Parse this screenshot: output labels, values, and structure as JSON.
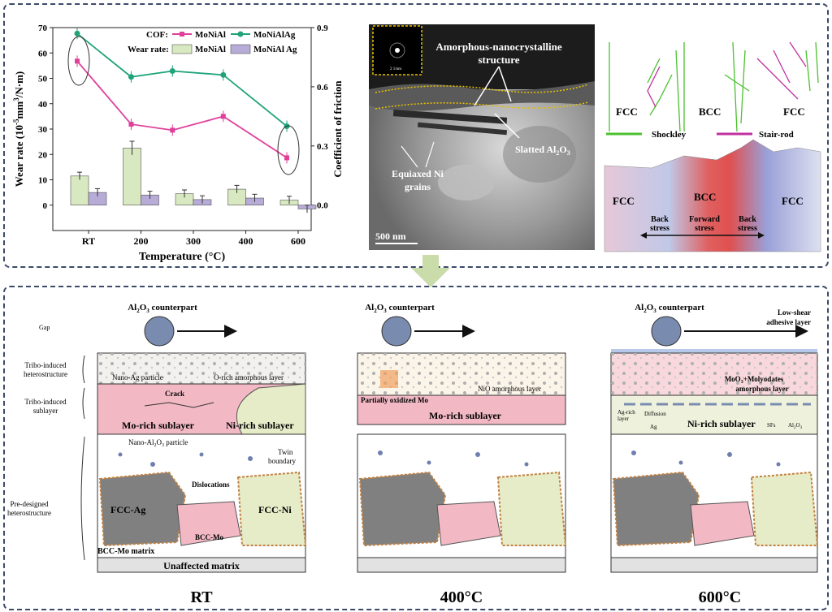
{
  "chart": {
    "ylabel_left": "Wear rate (10",
    "ylabel_left_sup": "-5",
    "ylabel_left_rest": "mm",
    "ylabel_left_sup2": "3",
    "ylabel_left_end": "/N·m)",
    "ylabel_right": "Coefficient of friction",
    "xlabel": "Temperature (°C)",
    "legend_cof": "COF:",
    "legend_wear": "Wear rate:",
    "legend_items": [
      "MoNiAl",
      "MoNiAlAg",
      "MoNiAl",
      "MoNiAl Ag"
    ],
    "left_ticks": [
      "0",
      "10",
      "20",
      "30",
      "40",
      "50",
      "60",
      "70"
    ],
    "right_ticks": [
      "0.0",
      "0.3",
      "0.6",
      "0.9"
    ],
    "x_ticks": [
      "RT",
      "200",
      "300",
      "400",
      "600"
    ]
  },
  "chart_data": {
    "type": "bar+line",
    "categories": [
      "RT",
      "200",
      "300",
      "400",
      "600"
    ],
    "ylim_left": [
      0,
      70
    ],
    "ylim_right": [
      0,
      0.9
    ],
    "series": [
      {
        "name": "MoNiAl",
        "kind": "bar",
        "values": [
          11.5,
          22.5,
          4.5,
          6.3,
          2.0
        ]
      },
      {
        "name": "MoNiAl Ag",
        "kind": "bar",
        "values": [
          5.0,
          4.0,
          2.2,
          2.8,
          -1.5
        ]
      },
      {
        "name": "MoNiAl",
        "kind": "line",
        "x": [
          0,
          0.85,
          1.5,
          2.3,
          3.3
        ],
        "values": [
          0.73,
          0.41,
          0.38,
          0.45,
          0.24
        ]
      },
      {
        "name": "MoNiAlAg",
        "kind": "line",
        "x": [
          0,
          0.85,
          1.5,
          2.3,
          3.3
        ],
        "values": [
          0.87,
          0.65,
          0.68,
          0.66,
          0.4
        ]
      }
    ],
    "colors": {
      "MoNiAl_line": "#e0409a",
      "MoNiAlAg_line": "#1fa37a",
      "MoNiAl_bar": "#d8e8c0",
      "MoNiAlAg_bar": "#b7acd8"
    }
  },
  "micrograph": {
    "title1": "Amorphous-nanocrystalline",
    "title2": "structure",
    "slatted": "Slatted Al",
    "slatted_sub": "2",
    "slatted_o": "O",
    "slatted_sub2": "3",
    "equiaxed1": "Equiaxed Ni",
    "equiaxed2": "grains",
    "scale": "500 nm",
    "inset_scale": "2 1/nm"
  },
  "md": {
    "fcc_left": "FCC",
    "bcc": "BCC",
    "fcc_right": "FCC",
    "shockley": "Shockley",
    "stairrod": "Stair-rod",
    "map_fcc_left": "FCC",
    "map_bcc": "BCC",
    "map_fcc_right": "FCC",
    "back_stress1": "Back",
    "back_stress1b": "stress",
    "forward1": "Forward",
    "forward2": "stress",
    "back_stress2": "Back",
    "back_stress2b": "stress"
  },
  "schematic": {
    "counterpart": "Al",
    "counterpart_sub": "2",
    "counterpart_o": "O",
    "counterpart_sub2": "3",
    "counterpart_end": " counterpart",
    "gap": "Gap",
    "tribo_hetero1": "Tribo-induced",
    "tribo_hetero2": "heterostructure",
    "tribo_sub1": "Tribo-induced",
    "tribo_sub2": "sublayer",
    "pre1": "Pre-designed",
    "pre2": "heterostructure",
    "nano_ag": "Nano-Ag particle",
    "o_rich": "O-rich amorphous layer",
    "crack": "Crack",
    "mo_rich": "Mo-rich sublayer",
    "ni_rich": "Ni-rich sublayer",
    "nano_al2o3": "Nano-Al",
    "nano_al2o3_b": " particle",
    "twin1": "Twin",
    "twin2": "boundary",
    "dislocations": "Dislocations",
    "fcc_ag": "FCC-Ag",
    "fcc_ni": "FCC-Ni",
    "bcc_mo": "BCC-Mo",
    "bcc_mo_matrix": "BCC-Mo matrix",
    "unaffected": "Unaffected matrix",
    "nio": "NiO amorphous layer",
    "partially": "Partially oxidized Mo",
    "mo_rich2": "Mo-rich sublayer",
    "low_shear1": "Low-shear",
    "low_shear2": "adhesive layer",
    "moo3_1": "MoO",
    "moo3_1b": "+Molyodates",
    "moo3_2": "amorphous layer",
    "ag_rich1": "Ag-rich",
    "ag_rich2": "layer",
    "diffusion": "Diffusion",
    "ag": "Ag",
    "ni_rich3": "Ni-rich sublayer",
    "sfs": "SFs",
    "al2o3_small": "Al",
    "label_rt": "RT",
    "label_400": "400°C",
    "label_600": "600°C"
  }
}
